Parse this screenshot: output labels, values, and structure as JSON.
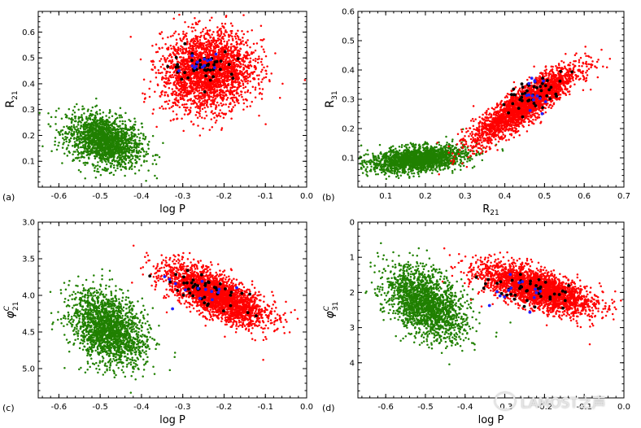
{
  "chart_data": [
    {
      "type": "scatter",
      "panel_label": "(a)",
      "xlabel": "log P",
      "ylabel": "R",
      "ylabel_sub": "21",
      "xlim": [
        -0.65,
        0.0
      ],
      "ylim": [
        0.0,
        0.68
      ],
      "xticks": [
        "-0.6",
        "-0.5",
        "-0.4",
        "-0.3",
        "-0.2",
        "-0.1",
        "0.0"
      ],
      "xtick_values": [
        -0.6,
        -0.5,
        -0.4,
        -0.3,
        -0.2,
        -0.1,
        0.0
      ],
      "yticks": [
        "0.1",
        "0.2",
        "0.3",
        "0.4",
        "0.5",
        "0.6"
      ],
      "ytick_values": [
        0.1,
        0.2,
        0.3,
        0.4,
        0.5,
        0.6
      ],
      "series": [
        {
          "color": "#208000",
          "points": 1800,
          "center": [
            -0.49,
            0.18
          ],
          "spread": [
            0.045,
            0.05
          ],
          "corr": -0.3
        },
        {
          "color": "#ff0000",
          "points": 2600,
          "center": [
            -0.24,
            0.45
          ],
          "spread": [
            0.055,
            0.075
          ],
          "corr": 0.1
        },
        {
          "color": "#000000",
          "points": 45,
          "center": [
            -0.25,
            0.47
          ],
          "spread": [
            0.04,
            0.03
          ],
          "corr": 0
        },
        {
          "color": "#2020ff",
          "points": 14,
          "center": [
            -0.26,
            0.48
          ],
          "spread": [
            0.03,
            0.02
          ],
          "corr": 0
        }
      ]
    },
    {
      "type": "scatter",
      "panel_label": "(b)",
      "xlabel": "R",
      "xlabel_sub": "21",
      "ylabel": "R",
      "ylabel_sub": "31",
      "xlim": [
        0.03,
        0.7
      ],
      "ylim": [
        0.0,
        0.6
      ],
      "xticks": [
        "0.1",
        "0.2",
        "0.3",
        "0.4",
        "0.5",
        "0.6",
        "0.7"
      ],
      "xtick_values": [
        0.1,
        0.2,
        0.3,
        0.4,
        0.5,
        0.6,
        0.7
      ],
      "yticks": [
        "0.1",
        "0.2",
        "0.3",
        "0.4",
        "0.5",
        "0.6"
      ],
      "ytick_values": [
        0.1,
        0.2,
        0.3,
        0.4,
        0.5,
        0.6
      ],
      "series": [
        {
          "color": "#208000",
          "points": 1900,
          "center": [
            0.18,
            0.095
          ],
          "spread": [
            0.06,
            0.022
          ],
          "corr": 0.35
        },
        {
          "color": "#ff0000",
          "points": 2600,
          "center": [
            0.45,
            0.28
          ],
          "spread": [
            0.065,
            0.065
          ],
          "corr": 0.88
        },
        {
          "color": "#000000",
          "points": 45,
          "center": [
            0.47,
            0.32
          ],
          "spread": [
            0.04,
            0.03
          ],
          "corr": 0.5
        },
        {
          "color": "#2020ff",
          "points": 14,
          "center": [
            0.48,
            0.32
          ],
          "spread": [
            0.02,
            0.03
          ],
          "corr": 0
        }
      ]
    },
    {
      "type": "scatter",
      "panel_label": "(c)",
      "xlabel": "log P",
      "ylabel": "φ",
      "ylabel_sup": "C",
      "ylabel_sub": "21",
      "xlim": [
        -0.65,
        0.0
      ],
      "ylim": [
        5.4,
        3.0
      ],
      "xticks": [
        "-0.6",
        "-0.5",
        "-0.4",
        "-0.3",
        "-0.2",
        "-0.1",
        "0.0"
      ],
      "xtick_values": [
        -0.6,
        -0.5,
        -0.4,
        -0.3,
        -0.2,
        -0.1,
        0.0
      ],
      "yticks": [
        "3.0",
        "3.5",
        "4.0",
        "4.5",
        "5.0"
      ],
      "ytick_values": [
        3.0,
        3.5,
        4.0,
        4.5,
        5.0
      ],
      "series": [
        {
          "color": "#208000",
          "points": 1900,
          "center": [
            -0.48,
            4.45
          ],
          "spread": [
            0.045,
            0.25
          ],
          "corr": 0.35
        },
        {
          "color": "#ff0000",
          "points": 2600,
          "center": [
            -0.22,
            4.0
          ],
          "spread": [
            0.06,
            0.2
          ],
          "corr": 0.7
        },
        {
          "color": "#000000",
          "points": 45,
          "center": [
            -0.24,
            3.92
          ],
          "spread": [
            0.05,
            0.12
          ],
          "corr": 0.5
        },
        {
          "color": "#2020ff",
          "points": 14,
          "center": [
            -0.26,
            3.95
          ],
          "spread": [
            0.04,
            0.12
          ],
          "corr": 0
        }
      ]
    },
    {
      "type": "scatter",
      "panel_label": "(d)",
      "xlabel": "log P",
      "ylabel": "φ",
      "ylabel_sup": "C",
      "ylabel_sub": "31",
      "xlim": [
        -0.67,
        0.0
      ],
      "ylim": [
        5.0,
        0.0
      ],
      "xticks": [
        "-0.6",
        "-0.5",
        "-0.4",
        "-0.3",
        "-0.2",
        "-0.1",
        "0.0"
      ],
      "xtick_values": [
        -0.6,
        -0.5,
        -0.4,
        -0.3,
        -0.2,
        -0.1,
        0.0
      ],
      "yticks": [
        "0",
        "1",
        "2",
        "3",
        "4"
      ],
      "ytick_values": [
        0,
        1,
        2,
        3,
        4
      ],
      "series": [
        {
          "color": "#208000",
          "points": 1900,
          "center": [
            -0.5,
            2.3
          ],
          "spread": [
            0.05,
            0.5
          ],
          "corr": 0.45
        },
        {
          "color": "#ff0000",
          "points": 2600,
          "center": [
            -0.22,
            1.9
          ],
          "spread": [
            0.07,
            0.35
          ],
          "corr": 0.65
        },
        {
          "color": "#000000",
          "points": 45,
          "center": [
            -0.24,
            1.95
          ],
          "spread": [
            0.06,
            0.25
          ],
          "corr": 0.5
        },
        {
          "color": "#2020ff",
          "points": 14,
          "center": [
            -0.27,
            2.0
          ],
          "spread": [
            0.05,
            0.25
          ],
          "corr": 0
        }
      ]
    }
  ],
  "watermark": "LAMOST之声"
}
